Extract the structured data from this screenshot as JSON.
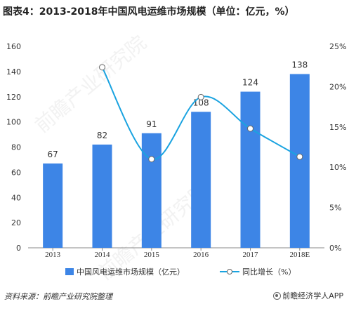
{
  "header": {
    "title": "图表4：2013-2018年中国风电运维市场规模（单位：亿元，%）"
  },
  "footer": {
    "source": "资料来源：前瞻产业研究院整理",
    "brand": "前瞻经济学人APP",
    "brand_icon": "qianzhan-logo-icon"
  },
  "chart_data": {
    "type": "bar",
    "categories": [
      "2013",
      "2014",
      "2015",
      "2016",
      "2017",
      "2018E"
    ],
    "left_ticks": [
      "0",
      "20",
      "40",
      "60",
      "80",
      "100",
      "120",
      "140",
      "160"
    ],
    "right_ticks": [
      "0%",
      "5%",
      "10%",
      "15%",
      "20%",
      "25%"
    ],
    "ylim": [
      0,
      160
    ],
    "y2lim": [
      0,
      25
    ],
    "series": [
      {
        "name": "中国风电运维市场规模（亿元）",
        "type": "bar",
        "axis": "left",
        "values": [
          67,
          82,
          91,
          108,
          124,
          138
        ],
        "labels": [
          "67",
          "82",
          "91",
          "108",
          "124",
          "138"
        ],
        "color": "#3d85e6"
      },
      {
        "name": "同比增长（%）",
        "type": "line",
        "axis": "right",
        "values": [
          null,
          22.4,
          11.0,
          18.7,
          14.8,
          11.3
        ],
        "color": "#1aa3e0"
      }
    ],
    "legend_position": "bottom",
    "grid": false,
    "watermark": "前瞻产业研究院"
  }
}
